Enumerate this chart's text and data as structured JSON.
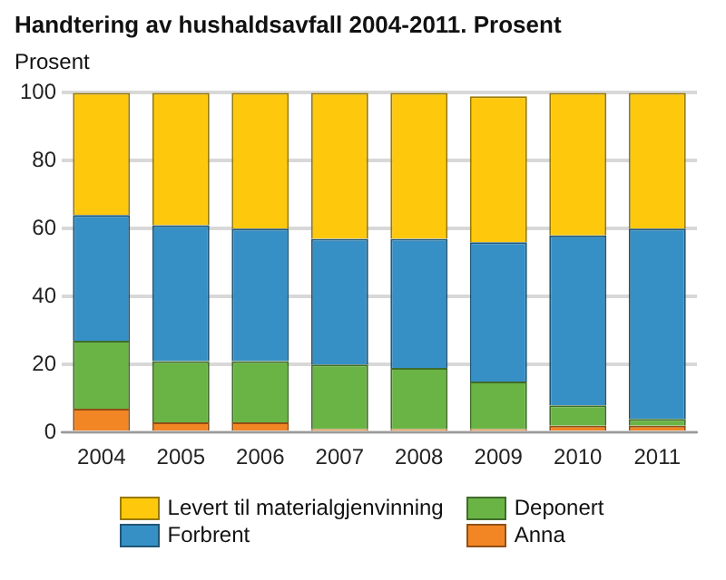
{
  "chart_data": {
    "type": "bar",
    "title": "Handtering av hushaldsavfall 2004-2011. Prosent",
    "ylabel": "Prosent",
    "categories": [
      "2004",
      "2005",
      "2006",
      "2007",
      "2008",
      "2009",
      "2010",
      "2011"
    ],
    "stacked": true,
    "series": [
      {
        "name": "Anna",
        "color": "#f28524",
        "values": [
          7,
          3,
          3,
          1,
          1,
          1,
          2,
          2
        ]
      },
      {
        "name": "Deponert",
        "color": "#6ab446",
        "values": [
          20,
          18,
          18,
          19,
          18,
          14,
          6,
          2
        ]
      },
      {
        "name": "Forbrent",
        "color": "#3690c5",
        "values": [
          37,
          40,
          39,
          37,
          38,
          41,
          50,
          56
        ]
      },
      {
        "name": "Levert til materialgjenvinning",
        "color": "#fec90d",
        "values": [
          36,
          39,
          40,
          43,
          43,
          43,
          42,
          40
        ]
      }
    ],
    "ylim": [
      0,
      100
    ],
    "yticks": [
      0,
      20,
      40,
      60,
      80,
      100
    ],
    "grid": "y",
    "legend": "bottom"
  }
}
